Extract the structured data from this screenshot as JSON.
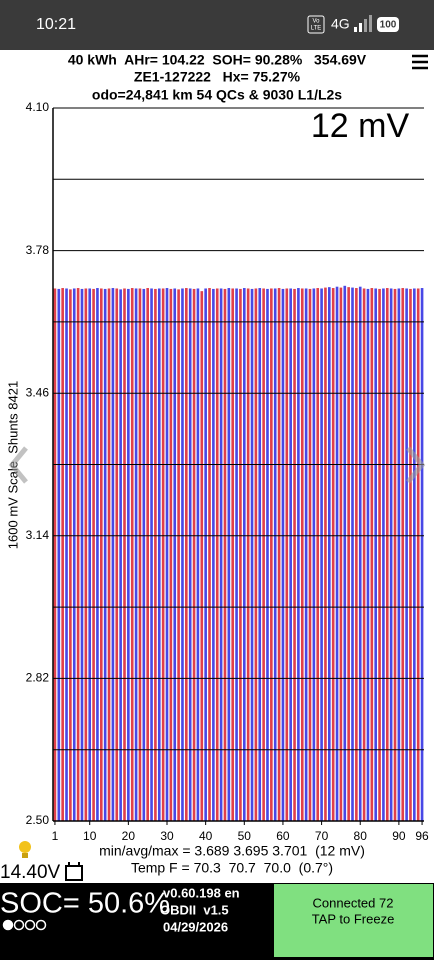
{
  "status_bar": {
    "time": "10:21",
    "volte": [
      "Vo",
      "LTE"
    ],
    "network": "4G",
    "battery": "100"
  },
  "header": {
    "lines": [
      "40 kWh  AHr= 104.22  SOH= 90.28%   354.69V",
      "ZE1-127222   Hx= 75.27%",
      "odo=24,841 km 54 QCs & 9030 L1/L2s"
    ]
  },
  "chart_data": {
    "type": "bar",
    "annotation": "12 mV",
    "ylabel": "1600 mV Scale  Shunts 8421",
    "x": [
      1,
      2,
      3,
      4,
      5,
      6,
      7,
      8,
      9,
      10,
      11,
      12,
      13,
      14,
      15,
      16,
      17,
      18,
      19,
      20,
      21,
      22,
      23,
      24,
      25,
      26,
      27,
      28,
      29,
      30,
      31,
      32,
      33,
      34,
      35,
      36,
      37,
      38,
      39,
      40,
      41,
      42,
      43,
      44,
      45,
      46,
      47,
      48,
      49,
      50,
      51,
      52,
      53,
      54,
      55,
      56,
      57,
      58,
      59,
      60,
      61,
      62,
      63,
      64,
      65,
      66,
      67,
      68,
      69,
      70,
      71,
      72,
      73,
      74,
      75,
      76,
      77,
      78,
      79,
      80,
      81,
      82,
      83,
      84,
      85,
      86,
      87,
      88,
      89,
      90,
      91,
      92,
      93,
      94,
      95,
      96
    ],
    "values": [
      3.695,
      3.694,
      3.696,
      3.695,
      3.693,
      3.695,
      3.696,
      3.694,
      3.695,
      3.695,
      3.694,
      3.696,
      3.695,
      3.694,
      3.695,
      3.696,
      3.695,
      3.693,
      3.695,
      3.694,
      3.696,
      3.695,
      3.695,
      3.694,
      3.696,
      3.695,
      3.694,
      3.695,
      3.695,
      3.696,
      3.694,
      3.695,
      3.693,
      3.695,
      3.696,
      3.695,
      3.694,
      3.695,
      3.689,
      3.695,
      3.696,
      3.694,
      3.695,
      3.695,
      3.694,
      3.696,
      3.695,
      3.695,
      3.694,
      3.696,
      3.695,
      3.694,
      3.695,
      3.696,
      3.695,
      3.694,
      3.695,
      3.695,
      3.696,
      3.694,
      3.695,
      3.695,
      3.694,
      3.696,
      3.695,
      3.695,
      3.694,
      3.695,
      3.696,
      3.695,
      3.697,
      3.698,
      3.696,
      3.699,
      3.697,
      3.701,
      3.698,
      3.697,
      3.696,
      3.699,
      3.695,
      3.694,
      3.696,
      3.695,
      3.694,
      3.695,
      3.696,
      3.695,
      3.694,
      3.695,
      3.696,
      3.695,
      3.694,
      3.695,
      3.695,
      3.696
    ],
    "colors": [
      "#e0404a",
      "#4848e6"
    ],
    "ylim": [
      2.5,
      4.1
    ],
    "yticks": [
      {
        "value": 2.5,
        "label": "2.50"
      },
      2.82,
      3.14,
      3.46,
      3.78,
      {
        "value": 4.1,
        "label": "4.10"
      }
    ],
    "ygrid": [
      2.66,
      2.98,
      3.3,
      3.62,
      3.94
    ],
    "xticks": [
      1,
      10,
      20,
      30,
      40,
      50,
      60,
      70,
      80,
      90,
      96
    ],
    "grid": true
  },
  "footer": {
    "stats": "min/avg/max = 3.689 3.695 3.701  (12 mV)",
    "temp": "Temp F = 70.3  70.7  70.0  (0.7°)",
    "voltage": "14.40V"
  },
  "bottom_bar": {
    "soc": "SOC= 50.6%",
    "version": "v0.60.198 en",
    "obd": "OBDII  v1.5",
    "date": "04/29/2026",
    "button": [
      "Connected 72",
      "TAP to Freeze"
    ]
  }
}
